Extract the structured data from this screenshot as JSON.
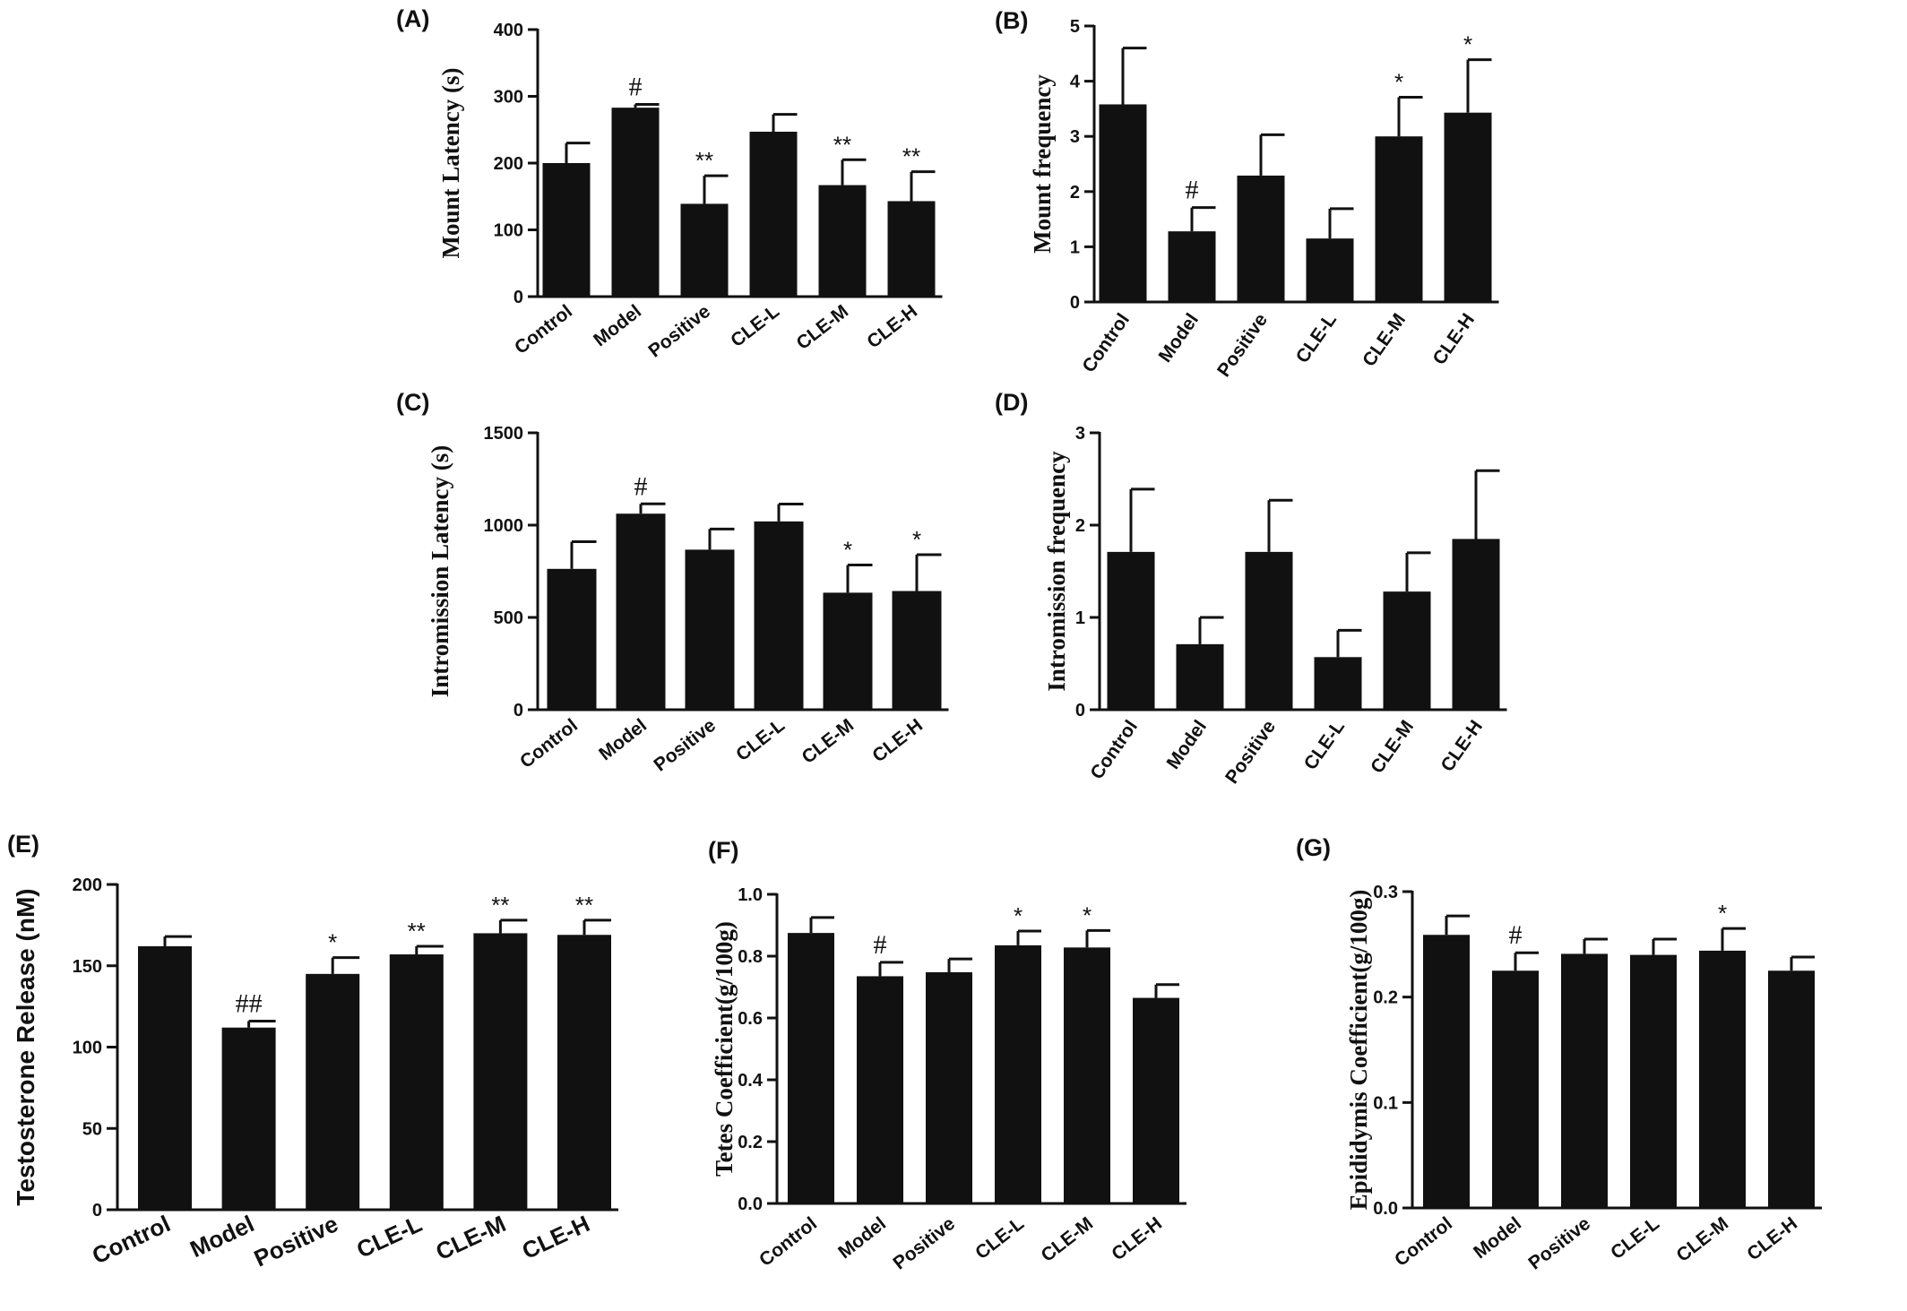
{
  "chart_data": [
    {
      "id": "A",
      "type": "bar",
      "panel_label": "(A)",
      "ylabel": "Mount Latency (s)",
      "categories": [
        "Control",
        "Model",
        "Positive",
        "CLE-L",
        "CLE-M",
        "CLE-H"
      ],
      "values": [
        200,
        283,
        139,
        247,
        167,
        143
      ],
      "errors": [
        30,
        5,
        42,
        26,
        38,
        44
      ],
      "significance": [
        "",
        "#",
        "**",
        "",
        "**",
        "**"
      ],
      "ylim": [
        0,
        400
      ],
      "yticks": [
        0,
        100,
        200,
        300,
        400
      ],
      "grid": false
    },
    {
      "id": "B",
      "type": "bar",
      "panel_label": "(B)",
      "ylabel": "Mount frequency",
      "categories": [
        "Control",
        "Model",
        "Positive",
        "CLE-L",
        "CLE-M",
        "CLE-H"
      ],
      "values": [
        3.58,
        1.28,
        2.29,
        1.15,
        3.0,
        3.43
      ],
      "errors": [
        1.02,
        0.43,
        0.74,
        0.54,
        0.71,
        0.96
      ],
      "significance": [
        "",
        "#",
        "",
        "",
        "*",
        "*"
      ],
      "ylim": [
        0,
        5
      ],
      "yticks": [
        0,
        1,
        2,
        3,
        4,
        5
      ],
      "grid": false
    },
    {
      "id": "C",
      "type": "bar",
      "panel_label": "(C)",
      "ylabel": "Intromission Latency (s)",
      "categories": [
        "Control",
        "Model",
        "Positive",
        "CLE-L",
        "CLE-M",
        "CLE-H"
      ],
      "values": [
        763,
        1062,
        867,
        1020,
        634,
        643
      ],
      "errors": [
        147,
        53,
        112,
        94,
        150,
        197
      ],
      "significance": [
        "",
        "#",
        "",
        "",
        "*",
        "*"
      ],
      "ylim": [
        0,
        1500
      ],
      "yticks": [
        0,
        500,
        1000,
        1500
      ],
      "grid": false
    },
    {
      "id": "D",
      "type": "bar",
      "panel_label": "(D)",
      "ylabel": "Intromission frequency",
      "categories": [
        "Control",
        "Model",
        "Positive",
        "CLE-L",
        "CLE-M",
        "CLE-H"
      ],
      "values": [
        1.71,
        0.71,
        1.71,
        0.57,
        1.28,
        1.85
      ],
      "errors": [
        0.68,
        0.29,
        0.56,
        0.29,
        0.42,
        0.74
      ],
      "significance": [
        "",
        "",
        "",
        "",
        "",
        ""
      ],
      "ylim": [
        0,
        3
      ],
      "yticks": [
        0,
        1,
        2,
        3
      ],
      "grid": false
    },
    {
      "id": "E",
      "type": "bar",
      "panel_label": "(E)",
      "ylabel": "Testosterone Release (nM)",
      "categories": [
        "Control",
        "Model",
        "Positive",
        "CLE-L",
        "CLE-M",
        "CLE-H"
      ],
      "values": [
        162,
        112,
        145,
        157,
        170,
        169
      ],
      "errors": [
        6,
        4,
        10,
        5,
        8,
        9
      ],
      "significance": [
        "",
        "##",
        "*",
        "**",
        "**",
        "**"
      ],
      "ylim": [
        0,
        200
      ],
      "yticks": [
        0,
        50,
        100,
        150,
        200
      ],
      "grid": false
    },
    {
      "id": "F",
      "type": "bar",
      "panel_label": "(F)",
      "ylabel": "Tetes Coefficient(g/100g)",
      "categories": [
        "Control",
        "Model",
        "Positive",
        "CLE-L",
        "CLE-M",
        "CLE-H"
      ],
      "values": [
        0.875,
        0.735,
        0.748,
        0.835,
        0.828,
        0.665
      ],
      "errors": [
        0.05,
        0.045,
        0.043,
        0.046,
        0.055,
        0.043
      ],
      "significance": [
        "",
        "#",
        "",
        "*",
        "*",
        ""
      ],
      "ylim": [
        0,
        1.0
      ],
      "yticks": [
        0.0,
        0.2,
        0.4,
        0.6,
        0.8,
        1.0
      ],
      "ytick_labels": [
        "0.0",
        "0.2",
        "0.4",
        "0.6",
        "0.8",
        "1.0"
      ],
      "grid": false
    },
    {
      "id": "G",
      "type": "bar",
      "panel_label": "(G)",
      "ylabel": "Epididymis Coefficient(g/100g)",
      "categories": [
        "Control",
        "Model",
        "Positive",
        "CLE-L",
        "CLE-M",
        "CLE-H"
      ],
      "values": [
        0.259,
        0.225,
        0.241,
        0.24,
        0.244,
        0.225
      ],
      "errors": [
        0.018,
        0.017,
        0.014,
        0.015,
        0.021,
        0.013
      ],
      "significance": [
        "",
        "#",
        "",
        "",
        "*",
        ""
      ],
      "ylim": [
        0,
        0.3
      ],
      "yticks": [
        0.0,
        0.1,
        0.2,
        0.3
      ],
      "ytick_labels": [
        "0.0",
        "0.1",
        "0.2",
        "0.3"
      ],
      "grid": false
    }
  ]
}
